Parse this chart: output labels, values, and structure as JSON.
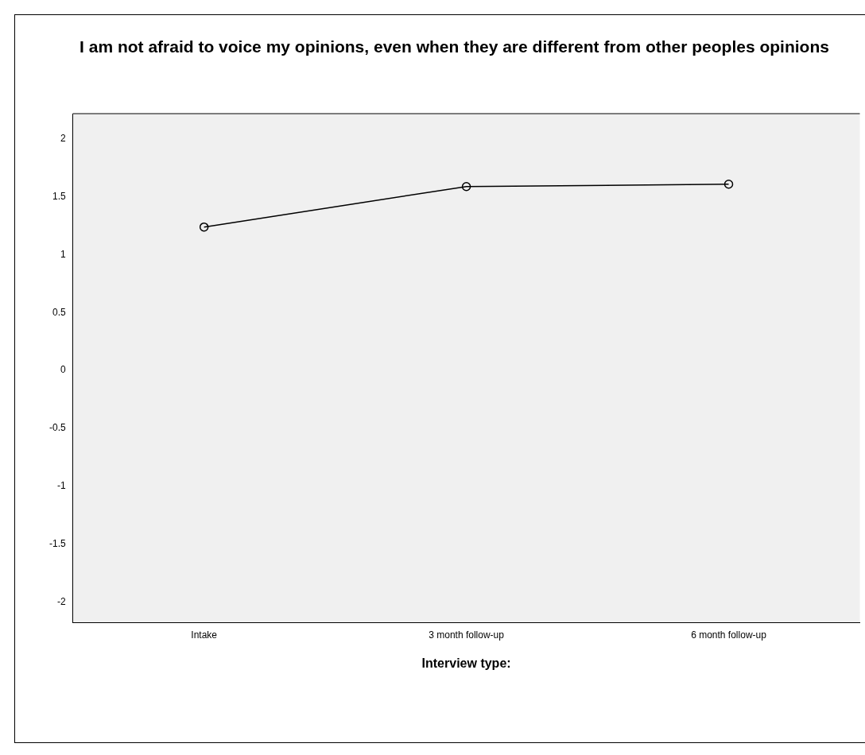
{
  "chart_data": {
    "type": "line",
    "title": "I am not afraid to voice my opinions, even when they are different from other peoples opinions",
    "xlabel": "Interview type:",
    "categories": [
      "Intake",
      "3 month follow-up",
      "6 month follow-up"
    ],
    "series": [
      {
        "color": "#000000",
        "values": [
          1.24,
          1.59,
          1.61
        ]
      }
    ],
    "ylim": [
      -2.18,
      2.22
    ],
    "yticks": [
      -2,
      -1.5,
      -1,
      -0.5,
      0,
      0.5,
      1,
      1.5,
      2
    ],
    "grid": false,
    "legend": false,
    "marker": "circle",
    "line_style": "solid"
  }
}
